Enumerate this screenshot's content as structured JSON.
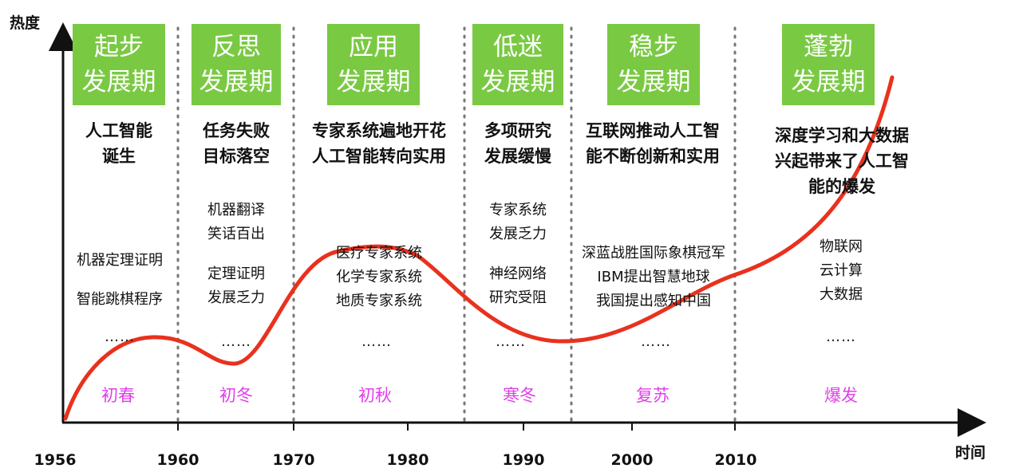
{
  "axis": {
    "y_label": "热度",
    "x_label": "时间"
  },
  "years": [
    "1956",
    "1960",
    "1970",
    "1980",
    "1990",
    "2000",
    "2010"
  ],
  "phases": [
    {
      "l1": "起步",
      "l2": "发展期",
      "desc": [
        "人工智能",
        "诞生"
      ],
      "events": [
        "机器定理证明",
        "智能跳棋程序"
      ],
      "dots": "……",
      "season": "初春"
    },
    {
      "l1": "反思",
      "l2": "发展期",
      "desc": [
        "任务失败",
        "目标落空"
      ],
      "events": [
        "机器翻译",
        "笑话百出",
        "定理证明",
        "发展乏力"
      ],
      "dots": "……",
      "season": "初冬"
    },
    {
      "l1": "应用",
      "l2": "发展期",
      "desc": [
        "专家系统遍地开花",
        "人工智能转向实用"
      ],
      "events": [
        "医疗专家系统",
        "化学专家系统",
        "地质专家系统"
      ],
      "dots": "……",
      "season": "初秋"
    },
    {
      "l1": "低迷",
      "l2": "发展期",
      "desc": [
        "多项研究",
        "发展缓慢"
      ],
      "events": [
        "专家系统",
        "发展乏力",
        "神经网络",
        "研究受阻"
      ],
      "dots": "……",
      "season": "寒冬"
    },
    {
      "l1": "稳步",
      "l2": "发展期",
      "desc": [
        "互联网推动人工智",
        "能不断创新和实用"
      ],
      "events": [
        "深蓝战胜国际象棋冠军",
        "IBM提出智慧地球",
        "我国提出感知中国"
      ],
      "dots": "……",
      "season": "复苏"
    },
    {
      "l1": "蓬勃",
      "l2": "发展期",
      "desc": [
        "深度学习和大数据",
        "兴起带来了人工智",
        "能的爆发"
      ],
      "events": [
        "物联网",
        "云计算",
        "大数据"
      ],
      "dots": "……",
      "season": "爆发"
    }
  ],
  "colors": {
    "box": "#7ac943",
    "curve": "#e8321e",
    "season": "#e040e8",
    "divider": "#777777"
  }
}
